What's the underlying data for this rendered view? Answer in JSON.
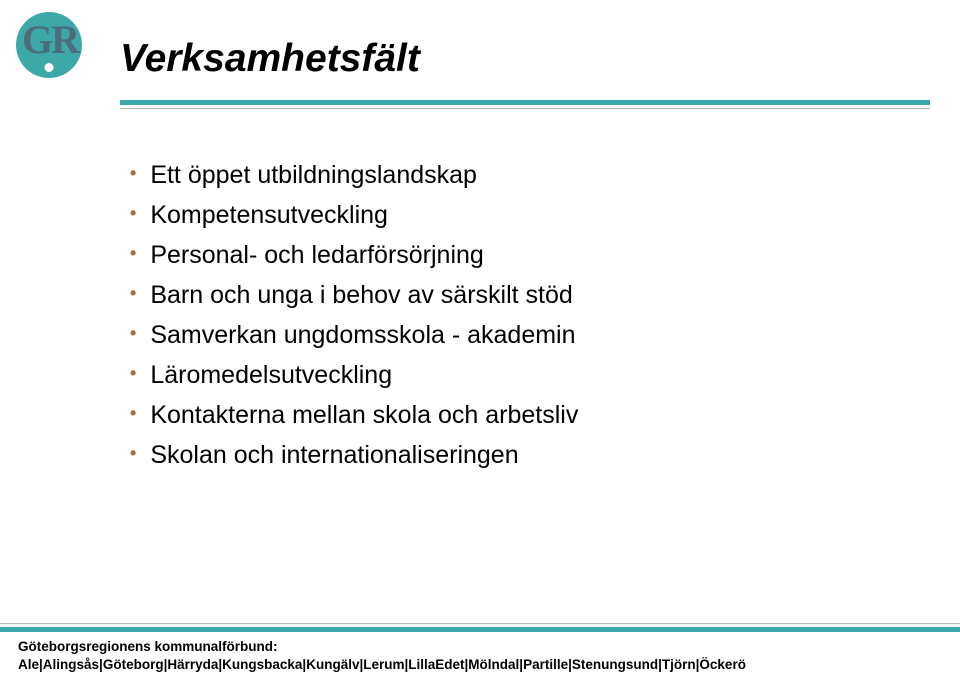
{
  "colors": {
    "accent_teal": "#3ca8a8",
    "logo_text": "#4c6c7a",
    "bullet": "#b26a2f",
    "rule_gray": "#b9b9b9",
    "text": "#000000",
    "background": "#ffffff"
  },
  "logo": {
    "letters": "GR"
  },
  "title": "Verksamhetsfält",
  "bullets": [
    "Ett öppet utbildningslandskap",
    "Kompetensutveckling",
    "Personal- och ledarförsörjning",
    "Barn och unga i behov av särskilt stöd",
    "Samverkan ungdomsskola - akademin",
    "Läromedelsutveckling",
    "Kontakterna mellan skola och arbetsliv",
    "Skolan och internationaliseringen"
  ],
  "footer": {
    "line1": "Göteborgsregionens kommunalförbund:",
    "line2": "Ale|Alingsås|Göteborg|Härryda|Kungsbacka|Kungälv|Lerum|LillaEdet|Mölndal|Partille|Stenungsund|Tjörn|Öckerö"
  }
}
